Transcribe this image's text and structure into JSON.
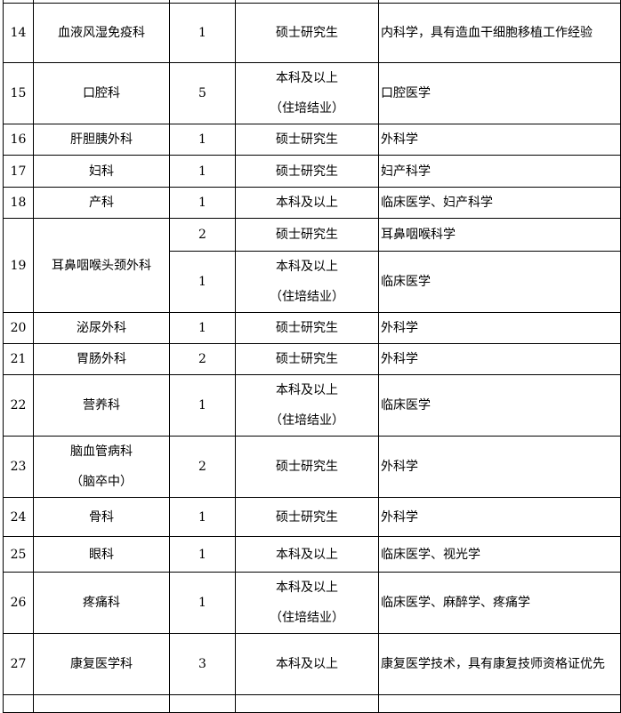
{
  "rows": [
    {
      "no": "14",
      "dept": "血液风湿免疫科",
      "count": "1",
      "edu": "硕士研究生",
      "major": "内科学，具有造血干细胞移植工作经验"
    },
    {
      "no": "15",
      "dept": "口腔科",
      "count": "5",
      "edu": "本科及以上（住培结业）",
      "major": "口腔医学"
    },
    {
      "no": "16",
      "dept": "肝胆胰外科",
      "count": "1",
      "edu": "硕士研究生",
      "major": "外科学"
    },
    {
      "no": "17",
      "dept": "妇科",
      "count": "1",
      "edu": "硕士研究生",
      "major": "妇产科学"
    },
    {
      "no": "18",
      "dept": "产科",
      "count": "1",
      "edu": "本科及以上",
      "major": "临床医学、妇产科学"
    },
    {
      "no": "19",
      "dept": "耳鼻咽喉头颈外科",
      "sub": [
        {
          "count": "2",
          "edu": "硕士研究生",
          "major": "耳鼻咽喉科学"
        },
        {
          "count": "1",
          "edu": "本科及以上（住培结业）",
          "major": "临床医学"
        }
      ]
    },
    {
      "no": "20",
      "dept": "泌尿外科",
      "count": "1",
      "edu": "硕士研究生",
      "major": "外科学"
    },
    {
      "no": "21",
      "dept": "胃肠外科",
      "count": "2",
      "edu": "硕士研究生",
      "major": "外科学"
    },
    {
      "no": "22",
      "dept": "营养科",
      "count": "1",
      "edu": "本科及以上（住培结业）",
      "major": "临床医学"
    },
    {
      "no": "23",
      "dept": "脑血管病科（脑卒中）",
      "count": "2",
      "edu": "硕士研究生",
      "major": "外科学"
    },
    {
      "no": "24",
      "dept": "骨科",
      "count": "1",
      "edu": "硕士研究生",
      "major": "外科学"
    },
    {
      "no": "25",
      "dept": "眼科",
      "count": "1",
      "edu": "本科及以上",
      "major": "临床医学、视光学"
    },
    {
      "no": "26",
      "dept": "疼痛科",
      "count": "1",
      "edu": "本科及以上（住培结业）",
      "major": "临床医学、麻醉学、疼痛学"
    },
    {
      "no": "27",
      "dept": "康复医学科",
      "count": "3",
      "edu": "本科及以上",
      "major": "康复医学技术，具有康复技师资格证优先"
    }
  ]
}
